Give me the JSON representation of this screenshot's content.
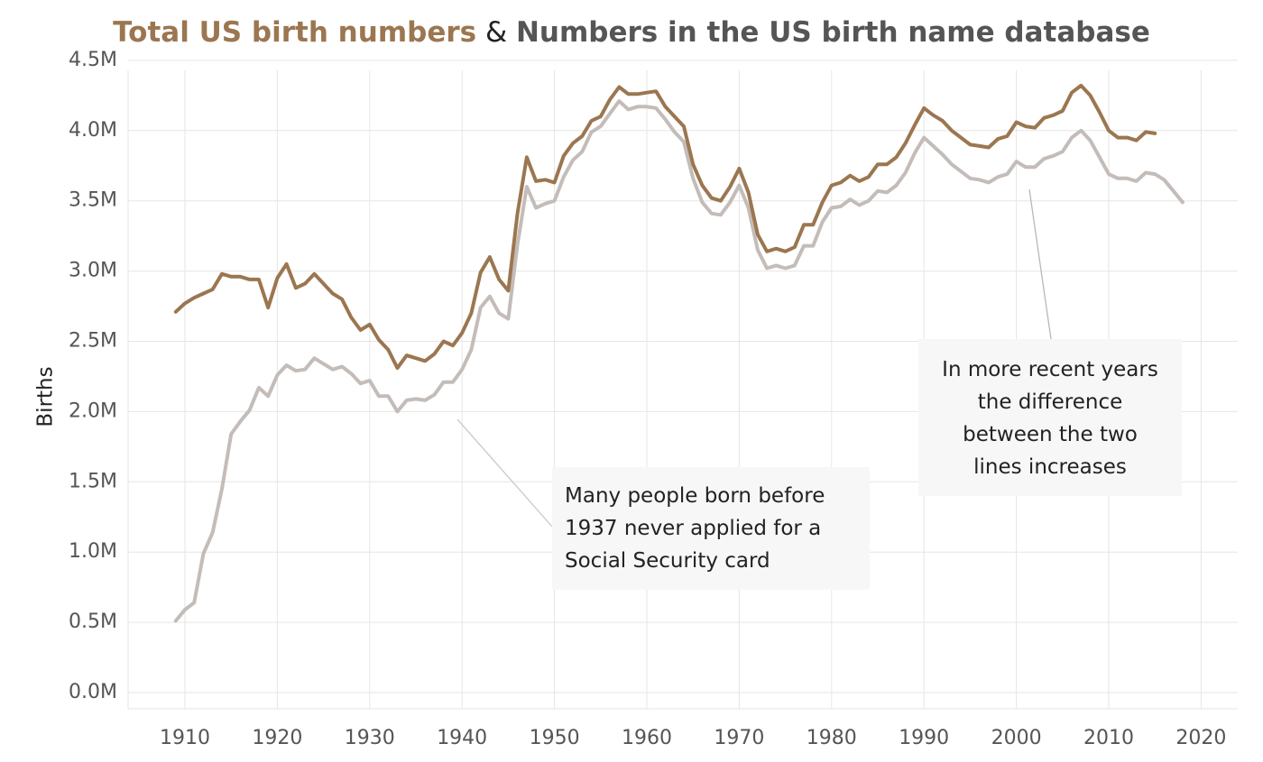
{
  "title": {
    "part1": "Total US birth numbers",
    "part2": " & ",
    "part3": "Numbers in the US birth name database"
  },
  "colors": {
    "total": "#9b7650",
    "database": "#c4bcb8",
    "grid": "#e6e6e6",
    "annotation_bg": "#f7f7f7"
  },
  "annotations": {
    "left": {
      "lines": [
        "Many people born before",
        "1937 never applied for a",
        "Social Security card"
      ]
    },
    "right": {
      "lines": [
        "In more recent years",
        "the difference",
        "between the two",
        "lines increases"
      ]
    }
  },
  "chart_data": {
    "type": "line",
    "title": "Total US birth numbers & Numbers in the US birth name database",
    "xlabel": "",
    "ylabel": "Births",
    "xlim": [
      1904,
      2022
    ],
    "ylim": [
      0,
      4.6
    ],
    "x_ticks": [
      1910,
      1920,
      1930,
      1940,
      1950,
      1960,
      1970,
      1980,
      1990,
      2000,
      2010,
      2020
    ],
    "y_ticks": [
      0,
      0.5,
      1.0,
      1.5,
      2.0,
      2.5,
      3.0,
      3.5,
      4.0,
      4.5
    ],
    "y_tick_labels": [
      "0.0M",
      "0.5M",
      "1.0M",
      "1.5M",
      "2.0M",
      "2.5M",
      "3.0M",
      "3.5M",
      "4.0M",
      "4.5M"
    ],
    "y_unit": "millions of births",
    "grid": true,
    "series": [
      {
        "name": "Total US birth numbers",
        "color": "#9b7650",
        "x": [
          1909,
          1910,
          1911,
          1912,
          1913,
          1914,
          1915,
          1916,
          1917,
          1918,
          1919,
          1920,
          1921,
          1922,
          1923,
          1924,
          1925,
          1926,
          1927,
          1928,
          1929,
          1930,
          1931,
          1932,
          1933,
          1934,
          1935,
          1936,
          1937,
          1938,
          1939,
          1940,
          1941,
          1942,
          1943,
          1944,
          1945,
          1946,
          1947,
          1948,
          1949,
          1950,
          1951,
          1952,
          1953,
          1954,
          1955,
          1956,
          1957,
          1958,
          1959,
          1960,
          1961,
          1962,
          1963,
          1964,
          1965,
          1966,
          1967,
          1968,
          1969,
          1970,
          1971,
          1972,
          1973,
          1974,
          1975,
          1976,
          1977,
          1978,
          1979,
          1980,
          1981,
          1982,
          1983,
          1984,
          1985,
          1986,
          1987,
          1988,
          1989,
          1990,
          1991,
          1992,
          1993,
          1994,
          1995,
          1996,
          1997,
          1998,
          1999,
          2000,
          2001,
          2002,
          2003,
          2004,
          2005,
          2006,
          2007,
          2008,
          2009,
          2010,
          2011,
          2012,
          2013,
          2014,
          2015
        ],
        "values": [
          2.71,
          2.77,
          2.81,
          2.84,
          2.87,
          2.98,
          2.96,
          2.96,
          2.94,
          2.94,
          2.74,
          2.95,
          3.05,
          2.88,
          2.91,
          2.98,
          2.91,
          2.84,
          2.8,
          2.67,
          2.58,
          2.62,
          2.51,
          2.44,
          2.31,
          2.4,
          2.38,
          2.36,
          2.41,
          2.5,
          2.47,
          2.56,
          2.7,
          2.99,
          3.1,
          2.94,
          2.86,
          3.41,
          3.81,
          3.64,
          3.65,
          3.63,
          3.82,
          3.91,
          3.96,
          4.07,
          4.1,
          4.22,
          4.31,
          4.26,
          4.26,
          4.27,
          4.28,
          4.17,
          4.1,
          4.03,
          3.76,
          3.61,
          3.52,
          3.5,
          3.6,
          3.73,
          3.56,
          3.26,
          3.14,
          3.16,
          3.14,
          3.17,
          3.33,
          3.33,
          3.49,
          3.61,
          3.63,
          3.68,
          3.64,
          3.67,
          3.76,
          3.76,
          3.81,
          3.91,
          4.04,
          4.16,
          4.11,
          4.07,
          4.0,
          3.95,
          3.9,
          3.89,
          3.88,
          3.94,
          3.96,
          4.06,
          4.03,
          4.02,
          4.09,
          4.11,
          4.14,
          4.27,
          4.32,
          4.25,
          4.13,
          4.0,
          3.95,
          3.95,
          3.93,
          3.99,
          3.98
        ]
      },
      {
        "name": "Numbers in the US birth name database",
        "color": "#c4bcb8",
        "x": [
          1909,
          1910,
          1911,
          1912,
          1913,
          1914,
          1915,
          1916,
          1917,
          1918,
          1919,
          1920,
          1921,
          1922,
          1923,
          1924,
          1925,
          1926,
          1927,
          1928,
          1929,
          1930,
          1931,
          1932,
          1933,
          1934,
          1935,
          1936,
          1937,
          1938,
          1939,
          1940,
          1941,
          1942,
          1943,
          1944,
          1945,
          1946,
          1947,
          1948,
          1949,
          1950,
          1951,
          1952,
          1953,
          1954,
          1955,
          1956,
          1957,
          1958,
          1959,
          1960,
          1961,
          1962,
          1963,
          1964,
          1965,
          1966,
          1967,
          1968,
          1969,
          1970,
          1971,
          1972,
          1973,
          1974,
          1975,
          1976,
          1977,
          1978,
          1979,
          1980,
          1981,
          1982,
          1983,
          1984,
          1985,
          1986,
          1987,
          1988,
          1989,
          1990,
          1991,
          1992,
          1993,
          1994,
          1995,
          1996,
          1997,
          1998,
          1999,
          2000,
          2001,
          2002,
          2003,
          2004,
          2005,
          2006,
          2007,
          2008,
          2009,
          2010,
          2011,
          2012,
          2013,
          2014,
          2015,
          2016,
          2017,
          2018
        ],
        "values": [
          0.51,
          0.59,
          0.64,
          0.99,
          1.14,
          1.45,
          1.84,
          1.93,
          2.01,
          2.17,
          2.11,
          2.26,
          2.33,
          2.29,
          2.3,
          2.38,
          2.34,
          2.3,
          2.32,
          2.27,
          2.2,
          2.22,
          2.11,
          2.11,
          2.0,
          2.08,
          2.09,
          2.08,
          2.12,
          2.21,
          2.21,
          2.3,
          2.44,
          2.74,
          2.82,
          2.7,
          2.66,
          3.19,
          3.6,
          3.45,
          3.48,
          3.5,
          3.67,
          3.79,
          3.85,
          3.99,
          4.03,
          4.12,
          4.21,
          4.15,
          4.17,
          4.17,
          4.16,
          4.08,
          3.99,
          3.92,
          3.66,
          3.49,
          3.41,
          3.4,
          3.49,
          3.61,
          3.45,
          3.15,
          3.02,
          3.04,
          3.02,
          3.04,
          3.18,
          3.18,
          3.35,
          3.45,
          3.46,
          3.51,
          3.47,
          3.5,
          3.57,
          3.56,
          3.61,
          3.7,
          3.84,
          3.95,
          3.89,
          3.83,
          3.76,
          3.71,
          3.66,
          3.65,
          3.63,
          3.67,
          3.69,
          3.78,
          3.74,
          3.74,
          3.8,
          3.82,
          3.85,
          3.95,
          4.0,
          3.93,
          3.81,
          3.69,
          3.66,
          3.66,
          3.64,
          3.7,
          3.69,
          3.65,
          3.57,
          3.49
        ]
      }
    ]
  }
}
